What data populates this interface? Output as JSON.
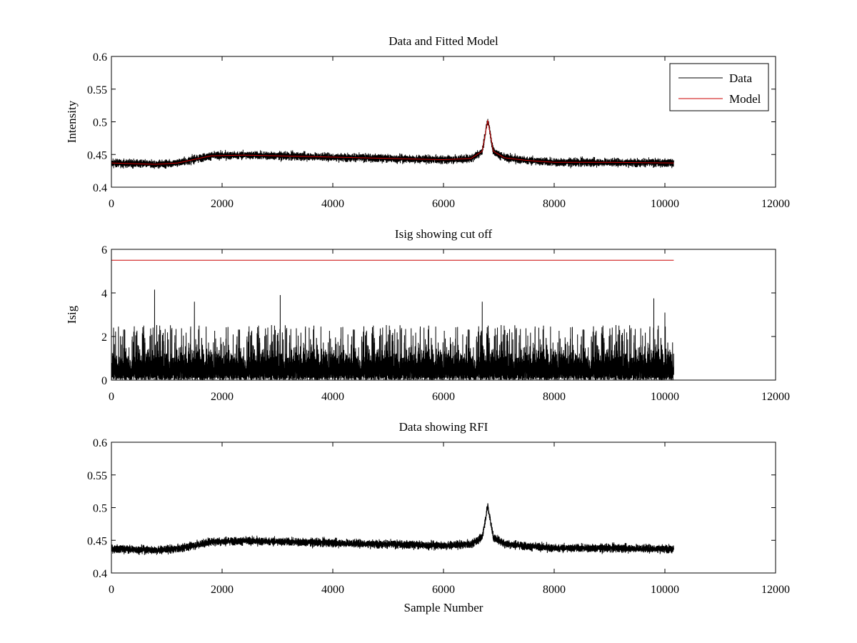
{
  "chart_data": [
    {
      "type": "line",
      "title": "Data and Fitted Model",
      "xlabel": "",
      "ylabel": "Intensity",
      "xlim": [
        0,
        12000
      ],
      "ylim": [
        0.4,
        0.6
      ],
      "xticks": [
        0,
        2000,
        4000,
        6000,
        8000,
        10000,
        12000
      ],
      "yticks": [
        0.4,
        0.45,
        0.5,
        0.55,
        0.6
      ],
      "xtick_labels": [
        "0",
        "2000",
        "4000",
        "6000",
        "8000",
        "10000",
        "12000"
      ],
      "ytick_labels": [
        "0.4",
        "0.45",
        "0.5",
        "0.55",
        "0.6"
      ],
      "legend": {
        "placement": "top-right",
        "entries": [
          "Data",
          "Model"
        ]
      },
      "series": [
        {
          "name": "Data",
          "color": "#000000",
          "style": "noisy",
          "n_points": 10160,
          "x_start": 0,
          "x_end": 10160,
          "noise_amplitude": 0.006,
          "baseline_x": [
            0,
            800,
            1200,
            1800,
            2400,
            3000,
            4000,
            5000,
            6000,
            6500,
            6700,
            6800,
            6900,
            7100,
            7500,
            8000,
            9000,
            10160
          ],
          "baseline_y": [
            0.437,
            0.435,
            0.437,
            0.448,
            0.449,
            0.448,
            0.446,
            0.444,
            0.442,
            0.444,
            0.455,
            0.503,
            0.455,
            0.445,
            0.441,
            0.438,
            0.438,
            0.437
          ]
        },
        {
          "name": "Model",
          "color": "#cc0000",
          "style": "smooth",
          "x": [
            0,
            800,
            1200,
            1800,
            2400,
            3000,
            4000,
            5000,
            6000,
            6500,
            6700,
            6800,
            6900,
            7100,
            7500,
            8000,
            9000,
            10160
          ],
          "y": [
            0.437,
            0.435,
            0.437,
            0.448,
            0.449,
            0.448,
            0.446,
            0.444,
            0.442,
            0.444,
            0.455,
            0.503,
            0.455,
            0.445,
            0.441,
            0.438,
            0.438,
            0.437
          ]
        }
      ]
    },
    {
      "type": "line",
      "title": "Isig showing cut off",
      "xlabel": "",
      "ylabel": "Isig",
      "xlim": [
        0,
        12000
      ],
      "ylim": [
        0,
        6
      ],
      "xticks": [
        0,
        2000,
        4000,
        6000,
        8000,
        10000,
        12000
      ],
      "yticks": [
        0,
        2,
        4,
        6
      ],
      "xtick_labels": [
        "0",
        "2000",
        "4000",
        "6000",
        "8000",
        "10000",
        "12000"
      ],
      "ytick_labels": [
        "0",
        "2",
        "4",
        "6"
      ],
      "series": [
        {
          "name": "",
          "color": "#000000",
          "style": "spiky",
          "n_points": 10160,
          "x_start": 0,
          "x_end": 10160,
          "typical_max": 2.3,
          "peaks_x": [
            780,
            3050,
            9800,
            10000,
            6700,
            1500
          ],
          "peaks_y": [
            4.15,
            3.9,
            3.75,
            3.1,
            3.6,
            3.6
          ]
        },
        {
          "name": "",
          "color": "#cc0000",
          "style": "flat",
          "x": [
            0,
            10160
          ],
          "y": [
            5.5,
            5.5
          ]
        }
      ]
    },
    {
      "type": "line",
      "title": "Data showing RFI",
      "xlabel": "Sample Number",
      "ylabel": "",
      "xlim": [
        0,
        12000
      ],
      "ylim": [
        0.4,
        0.6
      ],
      "xticks": [
        0,
        2000,
        4000,
        6000,
        8000,
        10000,
        12000
      ],
      "yticks": [
        0.4,
        0.45,
        0.5,
        0.55,
        0.6
      ],
      "xtick_labels": [
        "0",
        "2000",
        "4000",
        "6000",
        "8000",
        "10000",
        "12000"
      ],
      "ytick_labels": [
        "0.4",
        "0.45",
        "0.5",
        "0.55",
        "0.6"
      ],
      "series": [
        {
          "name": "",
          "color": "#000000",
          "style": "noisy",
          "n_points": 10160,
          "x_start": 0,
          "x_end": 10160,
          "noise_amplitude": 0.006,
          "baseline_x": [
            0,
            800,
            1200,
            1800,
            2400,
            3000,
            4000,
            5000,
            6000,
            6500,
            6700,
            6800,
            6900,
            7100,
            7500,
            8000,
            9000,
            10160
          ],
          "baseline_y": [
            0.437,
            0.435,
            0.437,
            0.448,
            0.449,
            0.448,
            0.446,
            0.444,
            0.442,
            0.444,
            0.455,
            0.503,
            0.455,
            0.445,
            0.441,
            0.438,
            0.438,
            0.437
          ]
        }
      ]
    }
  ]
}
